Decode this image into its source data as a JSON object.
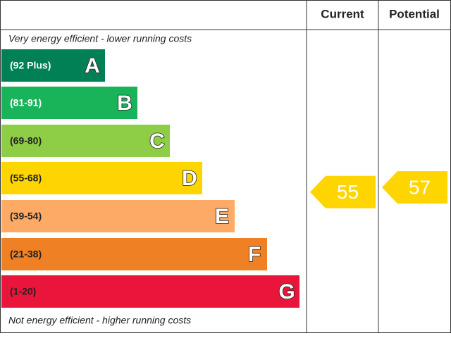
{
  "header": {
    "current": "Current",
    "potential": "Potential"
  },
  "top_note": "Very energy efficient - lower running costs",
  "bottom_note": "Not energy efficient - higher running costs",
  "bands": [
    {
      "range": "(92 Plus)",
      "letter": "A",
      "color": "#008054"
    },
    {
      "range": "(81-91)",
      "letter": "B",
      "color": "#19b459"
    },
    {
      "range": "(69-80)",
      "letter": "C",
      "color": "#8dce46"
    },
    {
      "range": "(55-68)",
      "letter": "D",
      "color": "#ffd500"
    },
    {
      "range": "(39-54)",
      "letter": "E",
      "color": "#fcaa65"
    },
    {
      "range": "(21-38)",
      "letter": "F",
      "color": "#ef8023"
    },
    {
      "range": "(1-20)",
      "letter": "G",
      "color": "#e9153b"
    }
  ],
  "current": {
    "value": 55,
    "color": "#ffd500"
  },
  "potential": {
    "value": 57,
    "color": "#ffd500"
  }
}
